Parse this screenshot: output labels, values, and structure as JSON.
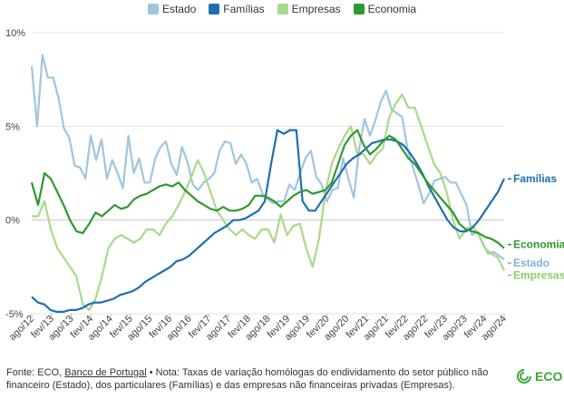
{
  "footer": {
    "prefix": "Fonte: ECO, ",
    "link": "Banco de Portugal",
    "note": " • Nota: Taxas de variação homólogas do endividamento do setor público não financeiro (Estado), dos particulares (Famílias) e das empresas não financeiras privadas (Empresas)."
  },
  "logo": {
    "text": "ECO",
    "color": "#3fa535"
  },
  "chart_data": {
    "type": "line",
    "title": "",
    "xlabel": "",
    "ylabel": "",
    "grid": true,
    "legend_position": "top",
    "ylim": [
      -5,
      10
    ],
    "y_ticks": [
      10,
      5,
      0,
      -5
    ],
    "y_tick_labels": [
      "10%",
      "5%",
      "0%",
      "-5%"
    ],
    "x_ticks": [
      "ago/12",
      "fev/13",
      "ago/13",
      "fev/14",
      "ago/14",
      "fev/15",
      "ago/15",
      "fev/16",
      "ago/16",
      "fev/17",
      "ago/17",
      "fev/18",
      "ago/18",
      "fev/19",
      "ago/19",
      "fev/20",
      "ago/20",
      "fev/21",
      "ago/21",
      "fev/22",
      "ago/22",
      "fev/23",
      "ago/23",
      "fev/24",
      "ago/24"
    ],
    "series": [
      {
        "name": "Estado",
        "color": "#9fc5e0",
        "end_label": "Estado",
        "values": [
          8.2,
          5.0,
          8.8,
          7.6,
          7.6,
          6.5,
          4.9,
          4.4,
          2.9,
          2.8,
          2.2,
          4.5,
          3.2,
          4.3,
          2.2,
          3.2,
          2.5,
          1.7,
          4.5,
          2.5,
          3.3,
          2.0,
          2.0,
          3.3,
          3.9,
          4.2,
          3.0,
          2.4,
          3.9,
          3.1,
          1.9,
          1.6,
          2.0,
          2.2,
          2.5,
          3.7,
          4.2,
          4.1,
          3.0,
          3.5,
          3.0,
          2.0,
          2.2,
          1.4,
          1.1,
          0.9,
          1.0,
          1.0,
          1.9,
          1.6,
          2.5,
          3.3,
          3.7,
          2.3,
          1.9,
          1.0,
          1.6,
          1.7,
          3.3,
          2.2,
          1.2,
          3.8,
          5.4,
          4.5,
          5.3,
          6.3,
          6.9,
          5.9,
          5.7,
          5.5,
          3.8,
          2.8,
          1.9,
          0.9,
          1.4,
          2.1,
          2.2,
          2.3,
          2.0,
          2.0,
          1.4,
          0.8,
          -0.8,
          -0.6,
          -1.2,
          -1.8,
          -1.7,
          -1.9,
          -2.1
        ]
      },
      {
        "name": "Famílias",
        "color": "#1f6fb0",
        "end_label": "Famílias",
        "values": [
          -4.1,
          -4.4,
          -4.5,
          -4.8,
          -4.9,
          -4.9,
          -4.8,
          -4.8,
          -4.7,
          -4.5,
          -4.4,
          -4.4,
          -4.3,
          -4.2,
          -4.0,
          -3.9,
          -3.8,
          -3.6,
          -3.3,
          -3.1,
          -2.9,
          -2.7,
          -2.5,
          -2.2,
          -2.1,
          -1.9,
          -1.6,
          -1.3,
          -1.0,
          -0.7,
          -0.5,
          -0.3,
          0.0,
          0.0,
          0.1,
          0.3,
          0.5,
          1.0,
          3.0,
          4.8,
          4.6,
          4.8,
          4.8,
          1.0,
          0.5,
          0.5,
          1.0,
          1.5,
          2.0,
          2.5,
          3.0,
          3.3,
          3.5,
          3.8,
          4.1,
          4.2,
          4.3,
          4.3,
          4.2,
          4.0,
          3.6,
          3.1,
          2.5,
          1.8,
          1.2,
          0.6,
          0.0,
          -0.4,
          -0.6,
          -0.6,
          -0.4,
          0.0,
          0.5,
          1.0,
          1.5,
          2.2
        ]
      },
      {
        "name": "Empresas",
        "color": "#a9d98a",
        "end_label": "Empresas",
        "values": [
          0.2,
          0.2,
          1.0,
          -0.5,
          -1.5,
          -2.0,
          -2.5,
          -3.0,
          -4.5,
          -4.8,
          -4.2,
          -3.0,
          -1.5,
          -1.0,
          -0.8,
          -1.0,
          -1.2,
          -1.0,
          -0.5,
          -0.5,
          -0.8,
          -0.2,
          0.2,
          0.8,
          1.5,
          2.3,
          3.2,
          2.5,
          1.5,
          0.5,
          0.0,
          -0.5,
          -0.8,
          -0.5,
          -0.8,
          -1.0,
          -0.5,
          -0.5,
          -1.2,
          0.3,
          -0.8,
          -0.3,
          -0.2,
          -1.5,
          -2.5,
          -1.0,
          1.5,
          3.0,
          3.8,
          4.5,
          5.0,
          3.5,
          3.5,
          3.0,
          3.5,
          3.8,
          5.5,
          6.2,
          6.7,
          6.0,
          6.0,
          5.0,
          4.0,
          3.0,
          2.5,
          1.5,
          0.0,
          -1.0,
          -0.5,
          -0.3,
          -0.8,
          -1.5,
          -1.8,
          -2.0,
          -2.7
        ]
      },
      {
        "name": "Economia",
        "color": "#2e9a2e",
        "end_label": "Economia",
        "values": [
          2.0,
          0.8,
          2.5,
          2.2,
          1.5,
          0.8,
          0.0,
          -0.6,
          -0.7,
          -0.2,
          0.4,
          0.2,
          0.5,
          0.8,
          0.6,
          0.7,
          1.1,
          1.3,
          1.4,
          1.6,
          1.8,
          1.9,
          1.8,
          2.0,
          1.6,
          1.3,
          1.0,
          0.8,
          0.6,
          0.5,
          0.7,
          0.5,
          0.5,
          0.6,
          0.8,
          1.3,
          1.3,
          1.2,
          1.0,
          0.7,
          1.0,
          1.3,
          1.5,
          1.6,
          1.4,
          1.5,
          1.6,
          2.0,
          3.0,
          4.0,
          4.5,
          4.8,
          4.0,
          3.5,
          3.8,
          4.2,
          4.5,
          4.3,
          3.8,
          3.3,
          3.0,
          2.5,
          2.0,
          1.6,
          1.2,
          0.8,
          0.4,
          -0.2,
          -0.5,
          -0.6,
          -0.7,
          -0.9,
          -1.0,
          -1.2,
          -1.5
        ]
      }
    ]
  }
}
